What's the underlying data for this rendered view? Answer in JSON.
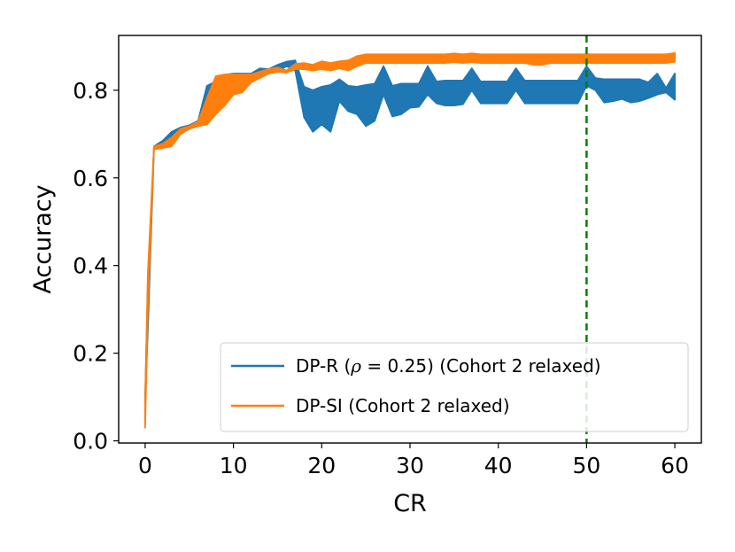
{
  "chart_data": {
    "type": "line",
    "title": "",
    "xlabel": "CR",
    "ylabel": "Accuracy",
    "xlim": [
      -3,
      63
    ],
    "ylim": [
      -0.005,
      0.925
    ],
    "xticks": [
      0,
      10,
      20,
      30,
      40,
      50,
      60
    ],
    "xtick_labels": [
      "0",
      "10",
      "20",
      "30",
      "40",
      "50",
      "60"
    ],
    "yticks": [
      0.0,
      0.2,
      0.4,
      0.6,
      0.8
    ],
    "ytick_labels": [
      "0.0",
      "0.2",
      "0.4",
      "0.6",
      "0.8"
    ],
    "grid": false,
    "legend_position": "lower right",
    "vline": {
      "x": 50,
      "color": "#008000",
      "style": "dashed"
    },
    "series": [
      {
        "name": "DP-R (ρ = 0.25) (Cohort 2 relaxed)",
        "legend_parts": [
          "DP-R (",
          "ρ",
          " = 0.25) (Cohort 2 relaxed)"
        ],
        "color": "#1f77b4",
        "x": [
          0,
          0.3,
          1,
          2,
          3,
          4,
          5,
          6,
          7,
          8,
          9,
          10,
          11,
          12,
          13,
          14,
          15,
          16,
          17,
          18,
          19,
          20,
          21,
          22,
          23,
          24,
          25,
          26,
          27,
          28,
          29,
          30,
          31,
          32,
          33,
          34,
          35,
          36,
          37,
          38,
          39,
          40,
          41,
          42,
          43,
          44,
          45,
          46,
          47,
          48,
          49,
          50,
          51,
          52,
          53,
          54,
          55,
          56,
          57,
          58,
          59,
          60
        ],
        "upper": [
          0.1,
          0.35,
          0.672,
          0.685,
          0.705,
          0.715,
          0.72,
          0.73,
          0.81,
          0.82,
          0.835,
          0.838,
          0.838,
          0.838,
          0.85,
          0.848,
          0.858,
          0.865,
          0.868,
          0.808,
          0.8,
          0.808,
          0.812,
          0.825,
          0.81,
          0.808,
          0.812,
          0.815,
          0.855,
          0.81,
          0.815,
          0.815,
          0.815,
          0.855,
          0.82,
          0.822,
          0.822,
          0.822,
          0.85,
          0.82,
          0.82,
          0.82,
          0.82,
          0.85,
          0.822,
          0.822,
          0.822,
          0.822,
          0.822,
          0.822,
          0.822,
          0.855,
          0.828,
          0.825,
          0.825,
          0.825,
          0.825,
          0.825,
          0.818,
          0.838,
          0.805,
          0.838
        ],
        "lower": [
          0.09,
          0.25,
          0.668,
          0.68,
          0.69,
          0.705,
          0.712,
          0.718,
          0.76,
          0.79,
          0.82,
          0.832,
          0.832,
          0.832,
          0.838,
          0.84,
          0.842,
          0.855,
          0.845,
          0.738,
          0.705,
          0.722,
          0.705,
          0.775,
          0.752,
          0.745,
          0.718,
          0.73,
          0.79,
          0.74,
          0.745,
          0.76,
          0.762,
          0.79,
          0.77,
          0.765,
          0.765,
          0.768,
          0.8,
          0.77,
          0.77,
          0.77,
          0.77,
          0.8,
          0.77,
          0.77,
          0.77,
          0.77,
          0.77,
          0.77,
          0.77,
          0.81,
          0.8,
          0.772,
          0.775,
          0.78,
          0.772,
          0.775,
          0.782,
          0.79,
          0.795,
          0.778
        ]
      },
      {
        "name": "DP-SI (Cohort 2 relaxed)",
        "legend_parts": [
          "DP-SI (Cohort 2 relaxed)"
        ],
        "color": "#ff7f0e",
        "x": [
          0,
          0.3,
          1,
          2,
          3,
          4,
          5,
          6,
          7,
          8,
          9,
          10,
          11,
          12,
          13,
          14,
          15,
          16,
          17,
          18,
          19,
          20,
          21,
          22,
          23,
          24,
          25,
          26,
          27,
          28,
          29,
          30,
          31,
          32,
          33,
          34,
          35,
          36,
          37,
          38,
          39,
          40,
          41,
          42,
          43,
          44,
          45,
          46,
          47,
          48,
          49,
          50,
          51,
          52,
          53,
          54,
          55,
          56,
          57,
          58,
          59,
          60
        ],
        "upper": [
          0.09,
          0.38,
          0.672,
          0.678,
          0.692,
          0.712,
          0.718,
          0.728,
          0.782,
          0.832,
          0.836,
          0.836,
          0.836,
          0.836,
          0.842,
          0.848,
          0.852,
          0.845,
          0.86,
          0.862,
          0.858,
          0.866,
          0.862,
          0.866,
          0.868,
          0.878,
          0.882,
          0.882,
          0.882,
          0.882,
          0.882,
          0.882,
          0.882,
          0.882,
          0.882,
          0.882,
          0.884,
          0.882,
          0.884,
          0.882,
          0.882,
          0.882,
          0.882,
          0.882,
          0.882,
          0.882,
          0.882,
          0.882,
          0.882,
          0.882,
          0.882,
          0.882,
          0.882,
          0.882,
          0.882,
          0.882,
          0.882,
          0.882,
          0.882,
          0.882,
          0.882,
          0.885
        ],
        "lower": [
          0.03,
          0.3,
          0.665,
          0.668,
          0.672,
          0.7,
          0.712,
          0.718,
          0.722,
          0.745,
          0.765,
          0.79,
          0.795,
          0.818,
          0.828,
          0.838,
          0.842,
          0.84,
          0.848,
          0.848,
          0.845,
          0.848,
          0.845,
          0.85,
          0.845,
          0.855,
          0.862,
          0.862,
          0.862,
          0.862,
          0.862,
          0.862,
          0.862,
          0.862,
          0.862,
          0.862,
          0.864,
          0.862,
          0.864,
          0.862,
          0.862,
          0.862,
          0.862,
          0.862,
          0.862,
          0.858,
          0.858,
          0.862,
          0.862,
          0.862,
          0.862,
          0.862,
          0.862,
          0.862,
          0.862,
          0.862,
          0.862,
          0.862,
          0.862,
          0.862,
          0.862,
          0.865
        ]
      }
    ]
  }
}
